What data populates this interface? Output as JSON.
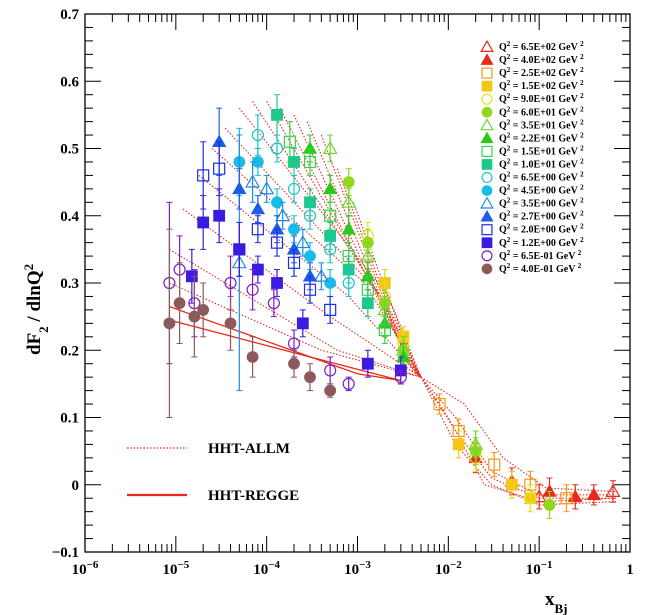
{
  "chart_data": {
    "type": "scatter",
    "x_scale": "log",
    "xlim": [
      1e-06,
      1
    ],
    "ylim": [
      -0.1,
      0.7
    ],
    "grid": false,
    "legend_placement": "top-right",
    "xlabel": "x_Bj",
    "ylabel": "dF2 / dlnQ2",
    "x_tick_labels": [
      {
        "v": 1e-06,
        "base": "10",
        "exp": "−6"
      },
      {
        "v": 1e-05,
        "base": "10",
        "exp": "−5"
      },
      {
        "v": 0.0001,
        "base": "10",
        "exp": "−4"
      },
      {
        "v": 0.001,
        "base": "10",
        "exp": "−3"
      },
      {
        "v": 0.01,
        "base": "10",
        "exp": "−2"
      },
      {
        "v": 0.1,
        "base": "10",
        "exp": "−1"
      },
      {
        "v": 1,
        "base": "1",
        "exp": ""
      }
    ],
    "y_tick_labels": [
      "−0.1",
      "0",
      "0.1",
      "0.2",
      "0.3",
      "0.4",
      "0.5",
      "0.6",
      "0.7"
    ],
    "series": [
      {
        "name": "Q² = 6.5E+02 GeV ²",
        "label_main": "Q",
        "label_rest": " = 6.5E+02 GeV ",
        "color": "#e8291c",
        "marker": "triangle",
        "filled": false,
        "points": [
          [
            0.1,
            -0.018,
            0.018
          ],
          [
            0.65,
            -0.01,
            0.016
          ]
        ]
      },
      {
        "name": "Q² = 4.0E+02 GeV ²",
        "label_main": "Q",
        "label_rest": " = 4.0E+02 GeV ",
        "color": "#e8291c",
        "marker": "triangle",
        "filled": true,
        "points": [
          [
            0.02,
            0.04,
            0.022
          ],
          [
            0.05,
            0.005,
            0.02
          ],
          [
            0.13,
            -0.01,
            0.02
          ],
          [
            0.25,
            -0.018,
            0.018
          ],
          [
            0.4,
            -0.015,
            0.015
          ]
        ]
      },
      {
        "name": "Q² = 2.5E+02 GeV ²",
        "label_main": "Q",
        "label_rest": " = 2.5E+02 GeV ",
        "color": "#f39a1b",
        "marker": "square",
        "filled": false,
        "points": [
          [
            0.008,
            0.12,
            0.015
          ],
          [
            0.013,
            0.08,
            0.018
          ],
          [
            0.032,
            0.03,
            0.018
          ],
          [
            0.08,
            0.0,
            0.02
          ],
          [
            0.2,
            -0.02,
            0.02
          ]
        ]
      },
      {
        "name": "Q² = 1.5E+02 GeV ²",
        "label_main": "Q",
        "label_rest": " = 1.5E+02 GeV ",
        "color": "#f5c61a",
        "marker": "square",
        "filled": true,
        "points": [
          [
            0.002,
            0.3,
            0.02
          ],
          [
            0.0032,
            0.22,
            0.015
          ],
          [
            0.013,
            0.06,
            0.02
          ],
          [
            0.05,
            0.0,
            0.02
          ],
          [
            0.08,
            -0.02,
            0.02
          ]
        ]
      },
      {
        "name": "Q² = 9.0E+01 GeV ²",
        "label_main": "Q",
        "label_rest": " = 9.0E+01 GeV ",
        "color": "#e6e61c",
        "marker": "circle",
        "filled": false,
        "points": [
          [
            0.0013,
            0.37,
            0.02
          ],
          [
            0.002,
            0.28,
            0.02
          ],
          [
            0.0032,
            0.21,
            0.02
          ],
          [
            0.02,
            0.04,
            0.02
          ],
          [
            0.08,
            -0.02,
            0.02
          ]
        ]
      },
      {
        "name": "Q² = 6.0E+01 GeV ²",
        "label_main": "Q",
        "label_rest": " = 6.0E+01 GeV ",
        "color": "#93d61c",
        "marker": "circle",
        "filled": true,
        "points": [
          [
            0.0008,
            0.45,
            0.02
          ],
          [
            0.0013,
            0.36,
            0.02
          ],
          [
            0.002,
            0.27,
            0.02
          ],
          [
            0.0032,
            0.2,
            0.02
          ],
          [
            0.02,
            0.05,
            0.02
          ],
          [
            0.13,
            -0.03,
            0.02
          ]
        ]
      },
      {
        "name": "Q² = 3.5E+01 GeV ²",
        "label_main": "Q",
        "label_rest": " = 3.5E+01 GeV ",
        "color": "#6dd630",
        "marker": "triangle",
        "filled": false,
        "points": [
          [
            0.0005,
            0.5,
            0.02
          ],
          [
            0.0008,
            0.42,
            0.02
          ],
          [
            0.0013,
            0.34,
            0.02
          ],
          [
            0.002,
            0.26,
            0.02
          ],
          [
            0.0032,
            0.2,
            0.02
          ],
          [
            0.02,
            0.06,
            0.02
          ]
        ]
      },
      {
        "name": "Q² = 2.2E+01 GeV ²",
        "label_main": "Q",
        "label_rest": " = 2.2E+01 GeV ",
        "color": "#2dc81c",
        "marker": "triangle",
        "filled": true,
        "points": [
          [
            0.0003,
            0.5,
            0.02
          ],
          [
            0.0005,
            0.44,
            0.02
          ],
          [
            0.0008,
            0.38,
            0.02
          ],
          [
            0.0013,
            0.31,
            0.02
          ],
          [
            0.002,
            0.24,
            0.02
          ],
          [
            0.0032,
            0.19,
            0.02
          ]
        ]
      },
      {
        "name": "Q² = 1.5E+01 GeV ²",
        "label_main": "Q",
        "label_rest": " = 1.5E+01 GeV ",
        "color": "#2ed64b",
        "marker": "square",
        "filled": false,
        "points": [
          [
            0.00018,
            0.51,
            0.03
          ],
          [
            0.0003,
            0.48,
            0.02
          ],
          [
            0.0005,
            0.4,
            0.02
          ],
          [
            0.0008,
            0.34,
            0.02
          ],
          [
            0.0013,
            0.29,
            0.02
          ],
          [
            0.002,
            0.23,
            0.02
          ]
        ]
      },
      {
        "name": "Q² = 1.0E+01 GeV ²",
        "label_main": "Q",
        "label_rest": " = 1.0E+01 GeV ",
        "color": "#1ec88a",
        "marker": "square",
        "filled": true,
        "points": [
          [
            0.00013,
            0.55,
            0.03
          ],
          [
            0.0002,
            0.48,
            0.02
          ],
          [
            0.0003,
            0.42,
            0.02
          ],
          [
            0.0005,
            0.37,
            0.02
          ],
          [
            0.0008,
            0.32,
            0.02
          ],
          [
            0.0013,
            0.27,
            0.02
          ]
        ]
      },
      {
        "name": "Q² = 6.5E+00 GeV ²",
        "label_main": "Q",
        "label_rest": " = 6.5E+00 GeV ",
        "color": "#18c4c4",
        "marker": "circle",
        "filled": false,
        "points": [
          [
            8e-05,
            0.52,
            0.03
          ],
          [
            0.00013,
            0.5,
            0.02
          ],
          [
            0.0002,
            0.44,
            0.02
          ],
          [
            0.0003,
            0.4,
            0.02
          ],
          [
            0.0005,
            0.35,
            0.02
          ],
          [
            0.0008,
            0.3,
            0.02
          ]
        ]
      },
      {
        "name": "Q² = 4.5E+00 GeV ²",
        "label_main": "Q",
        "label_rest": " = 4.5E+00 GeV ",
        "color": "#18bce6",
        "marker": "circle",
        "filled": true,
        "points": [
          [
            5e-05,
            0.48,
            0.05
          ],
          [
            8e-05,
            0.48,
            0.02
          ],
          [
            0.00013,
            0.42,
            0.02
          ],
          [
            0.0002,
            0.38,
            0.02
          ],
          [
            0.0003,
            0.34,
            0.02
          ],
          [
            0.0005,
            0.3,
            0.02
          ]
        ]
      },
      {
        "name": "Q² = 3.5E+00 GeV ²",
        "label_main": "Q",
        "label_rest": " = 3.5E+00 GeV ",
        "color": "#1c8ce6",
        "marker": "triangle",
        "filled": false,
        "points": [
          [
            5e-05,
            0.33,
            0.19
          ],
          [
            7e-05,
            0.45,
            0.03
          ],
          [
            0.0001,
            0.44,
            0.02
          ],
          [
            0.00015,
            0.4,
            0.02
          ],
          [
            0.00025,
            0.36,
            0.02
          ],
          [
            0.0004,
            0.31,
            0.02
          ]
        ]
      },
      {
        "name": "Q² = 2.7E+00 GeV ²",
        "label_main": "Q",
        "label_rest": " = 2.7E+00 GeV ",
        "color": "#1c5ce6",
        "marker": "triangle",
        "filled": true,
        "points": [
          [
            3e-05,
            0.51,
            0.05
          ],
          [
            5e-05,
            0.44,
            0.03
          ],
          [
            8e-05,
            0.41,
            0.02
          ],
          [
            0.00013,
            0.38,
            0.02
          ],
          [
            0.0002,
            0.35,
            0.02
          ],
          [
            0.0003,
            0.31,
            0.02
          ]
        ]
      },
      {
        "name": "Q² = 2.0E+00 GeV ²",
        "label_main": "Q",
        "label_rest": " = 2.0E+00 GeV ",
        "color": "#1c2ee6",
        "marker": "square",
        "filled": false,
        "points": [
          [
            2e-05,
            0.46,
            0.05
          ],
          [
            3e-05,
            0.47,
            0.04
          ],
          [
            5e-05,
            0.35,
            0.04
          ],
          [
            8e-05,
            0.38,
            0.02
          ],
          [
            0.00013,
            0.36,
            0.02
          ],
          [
            0.0002,
            0.33,
            0.02
          ],
          [
            0.0003,
            0.29,
            0.02
          ],
          [
            0.0005,
            0.26,
            0.02
          ]
        ]
      },
      {
        "name": "Q² = 1.2E+00 GeV ²",
        "label_main": "Q",
        "label_rest": " = 1.2E+00 GeV ",
        "color": "#3a1ce0",
        "marker": "square",
        "filled": true,
        "points": [
          [
            1.5e-05,
            0.31,
            0.04
          ],
          [
            2e-05,
            0.39,
            0.04
          ],
          [
            3e-05,
            0.4,
            0.04
          ],
          [
            5e-05,
            0.35,
            0.04
          ],
          [
            8e-05,
            0.32,
            0.02
          ],
          [
            0.00013,
            0.3,
            0.02
          ],
          [
            0.00025,
            0.24,
            0.02
          ],
          [
            0.0013,
            0.18,
            0.02
          ],
          [
            0.003,
            0.17,
            0.02
          ]
        ]
      },
      {
        "name": "Q² = 6.5E-01 GeV ²",
        "label_main": "Q",
        "label_rest": " = 6.5E-01 GeV ",
        "color": "#7b1cc8",
        "marker": "circle",
        "filled": false,
        "points": [
          [
            8.5e-06,
            0.3,
            0.12
          ],
          [
            1.1e-05,
            0.32,
            0.05
          ],
          [
            1.6e-05,
            0.27,
            0.05
          ],
          [
            4e-05,
            0.3,
            0.04
          ],
          [
            7e-05,
            0.29,
            0.03
          ],
          [
            0.00012,
            0.27,
            0.02
          ],
          [
            0.0002,
            0.21,
            0.02
          ],
          [
            0.0005,
            0.17,
            0.02
          ],
          [
            0.0008,
            0.15,
            0.01
          ],
          [
            0.003,
            0.16,
            0.01
          ]
        ]
      },
      {
        "name": "Q² = 4.0E-01 GeV ²",
        "label_main": "Q",
        "label_rest": " = 4.0E-01 GeV ",
        "color": "#8c5a5a",
        "marker": "circle",
        "filled": true,
        "points": [
          [
            8.5e-06,
            0.24,
            0.14
          ],
          [
            1.1e-05,
            0.27,
            0.06
          ],
          [
            1.6e-05,
            0.25,
            0.06
          ],
          [
            2e-05,
            0.26,
            0.04
          ],
          [
            4e-05,
            0.24,
            0.04
          ],
          [
            7e-05,
            0.19,
            0.03
          ],
          [
            0.0002,
            0.18,
            0.02
          ],
          [
            0.0003,
            0.16,
            0.02
          ],
          [
            0.0005,
            0.14,
            0.01
          ]
        ]
      }
    ],
    "models": [
      {
        "name": "HHT-ALLM",
        "style": "dotted",
        "color": "#e8291c"
      },
      {
        "name": "HHT-REGGE",
        "style": "solid",
        "color": "#e8291c"
      }
    ],
    "allm_lines": [
      [
        [
          8.5e-06,
          0.35
        ],
        [
          0.0006,
          0.2
        ],
        [
          0.005,
          0.16
        ]
      ],
      [
        [
          8.5e-06,
          0.3
        ],
        [
          0.0004,
          0.2
        ],
        [
          0.005,
          0.16
        ]
      ],
      [
        [
          1.2e-05,
          0.41
        ],
        [
          0.0005,
          0.25
        ],
        [
          0.005,
          0.16
        ]
      ],
      [
        [
          1.8e-05,
          0.46
        ],
        [
          0.0008,
          0.28
        ],
        [
          0.005,
          0.16
        ]
      ],
      [
        [
          2.5e-05,
          0.5
        ],
        [
          0.0012,
          0.3
        ],
        [
          0.005,
          0.16
        ]
      ],
      [
        [
          3.5e-05,
          0.53
        ],
        [
          0.0016,
          0.29
        ],
        [
          0.005,
          0.16
        ]
      ],
      [
        [
          5e-05,
          0.56
        ],
        [
          0.0022,
          0.28
        ],
        [
          0.005,
          0.16
        ]
      ],
      [
        [
          7e-05,
          0.57
        ],
        [
          0.0025,
          0.25
        ],
        [
          0.005,
          0.16
        ]
      ],
      [
        [
          0.0001,
          0.57
        ],
        [
          0.0028,
          0.23
        ],
        [
          0.005,
          0.16
        ]
      ],
      [
        [
          0.00014,
          0.56
        ],
        [
          0.003,
          0.21
        ],
        [
          0.005,
          0.16
        ]
      ],
      [
        [
          0.0002,
          0.55
        ],
        [
          0.0032,
          0.2
        ],
        [
          0.005,
          0.16
        ]
      ],
      [
        [
          0.00028,
          0.54
        ],
        [
          0.0034,
          0.19
        ],
        [
          0.005,
          0.16
        ]
      ],
      [
        [
          0.0004,
          0.52
        ],
        [
          0.0036,
          0.18
        ],
        [
          0.005,
          0.16
        ]
      ],
      [
        [
          0.0006,
          0.47
        ],
        [
          0.004,
          0.17
        ],
        [
          0.005,
          0.16
        ]
      ],
      [
        [
          0.0009,
          0.42
        ],
        [
          0.0045,
          0.165
        ],
        [
          0.005,
          0.16
        ]
      ],
      [
        [
          0.005,
          0.16
        ],
        [
          0.012,
          0.1
        ],
        [
          0.03,
          0.02
        ],
        [
          0.1,
          -0.015
        ],
        [
          0.7,
          -0.015
        ]
      ],
      [
        [
          0.005,
          0.16
        ],
        [
          0.012,
          0.08
        ],
        [
          0.03,
          0.01
        ],
        [
          0.1,
          -0.02
        ],
        [
          0.7,
          -0.02
        ]
      ],
      [
        [
          0.005,
          0.16
        ],
        [
          0.01,
          0.1
        ],
        [
          0.025,
          0.0
        ],
        [
          0.1,
          -0.025
        ],
        [
          0.7,
          -0.02
        ]
      ],
      [
        [
          0.005,
          0.16
        ],
        [
          0.015,
          0.12
        ],
        [
          0.04,
          0.04
        ],
        [
          0.12,
          -0.005
        ],
        [
          0.7,
          -0.01
        ]
      ],
      [
        [
          0.005,
          0.16
        ],
        [
          0.012,
          0.06
        ],
        [
          0.03,
          0.0
        ],
        [
          0.1,
          -0.03
        ],
        [
          0.7,
          -0.025
        ]
      ]
    ],
    "regge_lines": [
      [
        [
          8.5e-06,
          0.265
        ],
        [
          0.001,
          0.165
        ],
        [
          0.003,
          0.155
        ]
      ],
      [
        [
          8.5e-06,
          0.245
        ],
        [
          0.0003,
          0.19
        ],
        [
          0.003,
          0.155
        ]
      ]
    ]
  }
}
